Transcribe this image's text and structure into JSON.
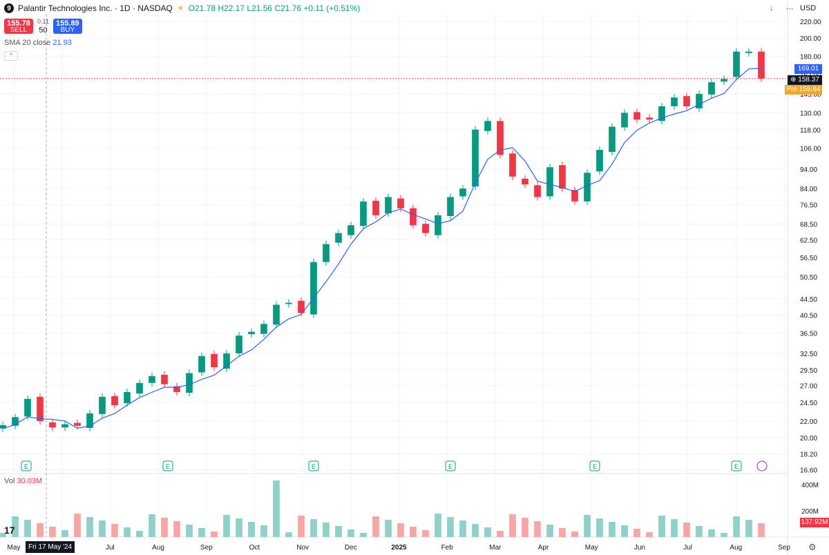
{
  "header": {
    "logo_letter": "9",
    "symbol": "Palantir Technologies Inc. · 1D · NASDAQ",
    "ohlc": {
      "o": "O21.78",
      "h": "H22.17",
      "l": "L21.56",
      "c": "C21.76",
      "chg": "+0.11 (+0.51%)"
    }
  },
  "trade": {
    "sell_price": "155.78",
    "sell_label": "SELL",
    "spread": "0.11",
    "qty": "50",
    "buy_price": "155.89",
    "buy_label": "BUY"
  },
  "indicator": {
    "name": "SMA 20 close",
    "value": "21.93"
  },
  "volume": {
    "label": "Vol",
    "value": "30.03M"
  },
  "currency": "USD",
  "price_labels": {
    "sma": "169.01",
    "last": "158.37",
    "pre_tag": "Pre",
    "pre": "155.84",
    "vol": "137.92M"
  },
  "crosshair_date": "Fri 17 May '24",
  "colors": {
    "up": "#089981",
    "down": "#f23645",
    "sma": "#2962ff",
    "volUp": "#8fd1c8",
    "volDown": "#f7a6a6"
  },
  "chart_data": {
    "type": "candlestick",
    "scale": "log",
    "yticks": [
      16.6,
      18.2,
      20.0,
      22.0,
      24.5,
      27.0,
      29.5,
      32.5,
      36.5,
      40.5,
      44.5,
      50.5,
      56.5,
      62.5,
      68.5,
      76.5,
      84.0,
      94.0,
      106.0,
      118.0,
      130.0,
      145.0,
      162.0,
      180.0,
      200.0,
      220.0
    ],
    "ylim": [
      16.0,
      230.0
    ],
    "xticks": [
      "May",
      "Jun",
      "Jul",
      "Aug",
      "Sep",
      "Oct",
      "Nov",
      "Dec",
      "2025",
      "Feb",
      "Mar",
      "Apr",
      "May",
      "Jun",
      "Jul",
      "Aug",
      "Sep"
    ],
    "earnings_months": [
      "May",
      "Aug",
      "Nov",
      "Feb",
      "May",
      "Aug"
    ],
    "volume_ticks": [
      "400M",
      "200M"
    ],
    "close": [
      21.5,
      22.5,
      25.0,
      22.0,
      21.2,
      21.6,
      21.4,
      23.0,
      25.3,
      24.1,
      26.0,
      27.4,
      28.5,
      27.2,
      26.0,
      29.0,
      32.0,
      30.0,
      32.5,
      36.0,
      36.8,
      38.5,
      43.0,
      43.5,
      41.0,
      55.0,
      61.0,
      65.0,
      68.0,
      78.0,
      72.0,
      80.0,
      75.0,
      68.0,
      65.0,
      72.0,
      80.0,
      84.0,
      118.0,
      124.0,
      102.0,
      90.0,
      86.0,
      80.0,
      95.0,
      84.0,
      78.0,
      92.0,
      105.0,
      120.0,
      130.0,
      125.0,
      125.0,
      135.0,
      142.0,
      135.0,
      145.0,
      155.0,
      158.0,
      185.0,
      185.0,
      158.37
    ]
  }
}
